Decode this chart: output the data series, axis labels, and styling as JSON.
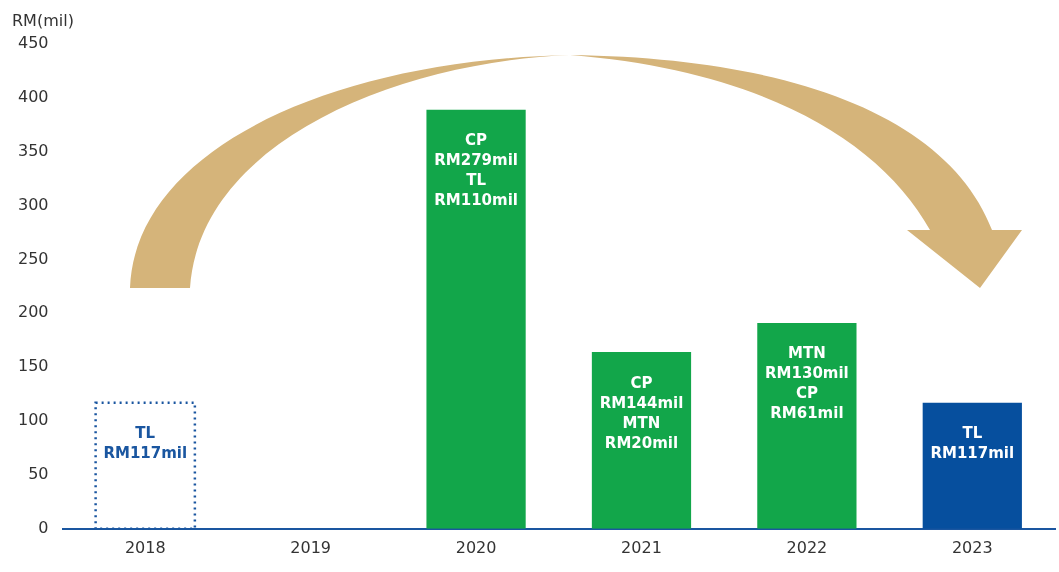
{
  "chart_data": {
    "type": "bar",
    "ylabel": "RM(mil)",
    "categories": [
      "2018",
      "2019",
      "2020",
      "2021",
      "2022",
      "2023"
    ],
    "series": [
      {
        "color": "#1a56a0",
        "line_style": "dotted",
        "values": [
          117,
          null,
          null,
          null,
          null,
          null
        ],
        "value_labels": [
          "TL\nRM117mil",
          null,
          null,
          null,
          null,
          null
        ]
      },
      {
        "color": "#12a64a",
        "values": [
          null,
          null,
          389,
          164,
          191,
          null
        ],
        "value_labels": [
          null,
          null,
          "CP\nRM279mil\nTL\nRM110mil",
          "CP\nRM144mil\nMTN\nRM20mil",
          "MTN\nRM130mil\nCP\nRM61mil",
          null
        ]
      },
      {
        "color": "#064f9e",
        "values": [
          null,
          null,
          null,
          null,
          null,
          117
        ],
        "value_labels": [
          null,
          null,
          null,
          null,
          null,
          "TL\nRM117mil"
        ]
      }
    ],
    "ylim": [
      0,
      450
    ],
    "yticks": [
      0,
      50,
      100,
      150,
      200,
      250,
      300,
      350,
      400,
      450
    ],
    "grid": false,
    "legend": false
  }
}
